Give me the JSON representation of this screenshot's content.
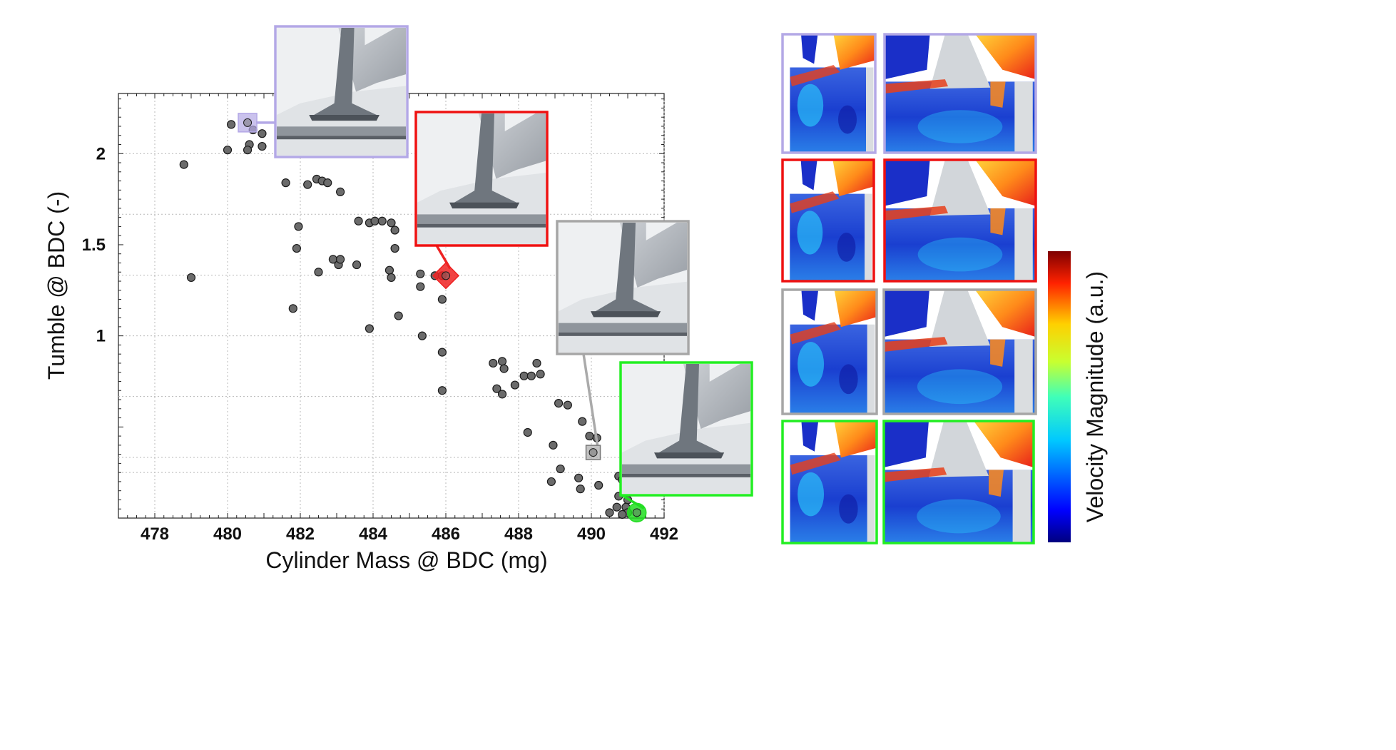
{
  "chart_data": {
    "type": "scatter",
    "title": "",
    "xlabel": "Cylinder Mass @ BDC (mg)",
    "ylabel": "Tumble @ BDC (-)",
    "xlim": [
      477,
      492
    ],
    "ylim": [
      0.0,
      2.33
    ],
    "xticks": [
      478,
      480,
      482,
      484,
      486,
      488,
      490,
      492
    ],
    "yticks": [
      1,
      1.5,
      2
    ],
    "xtick_labels": [
      "478",
      "480",
      "482",
      "484",
      "486",
      "488",
      "490",
      "492"
    ],
    "ytick_labels": [
      "1",
      "1.5",
      "2"
    ],
    "grid": true,
    "points": [
      {
        "x": 478.8,
        "y": 1.94
      },
      {
        "x": 479.0,
        "y": 1.32
      },
      {
        "x": 480.1,
        "y": 2.16
      },
      {
        "x": 480.0,
        "y": 2.02
      },
      {
        "x": 480.6,
        "y": 2.05
      },
      {
        "x": 480.55,
        "y": 2.02
      },
      {
        "x": 480.7,
        "y": 2.13
      },
      {
        "x": 480.95,
        "y": 2.11
      },
      {
        "x": 480.95,
        "y": 2.04
      },
      {
        "x": 481.6,
        "y": 1.84
      },
      {
        "x": 482.45,
        "y": 1.86
      },
      {
        "x": 482.6,
        "y": 1.85
      },
      {
        "x": 482.75,
        "y": 1.84
      },
      {
        "x": 482.2,
        "y": 1.83
      },
      {
        "x": 483.1,
        "y": 1.79
      },
      {
        "x": 481.95,
        "y": 1.6
      },
      {
        "x": 481.9,
        "y": 1.48
      },
      {
        "x": 481.8,
        "y": 1.15
      },
      {
        "x": 482.5,
        "y": 1.35
      },
      {
        "x": 482.9,
        "y": 1.42
      },
      {
        "x": 483.05,
        "y": 1.39
      },
      {
        "x": 483.1,
        "y": 1.42
      },
      {
        "x": 483.55,
        "y": 1.39
      },
      {
        "x": 483.6,
        "y": 1.63
      },
      {
        "x": 483.9,
        "y": 1.62
      },
      {
        "x": 484.05,
        "y": 1.63
      },
      {
        "x": 484.25,
        "y": 1.63
      },
      {
        "x": 484.5,
        "y": 1.62
      },
      {
        "x": 484.6,
        "y": 1.58
      },
      {
        "x": 484.6,
        "y": 1.48
      },
      {
        "x": 484.45,
        "y": 1.36
      },
      {
        "x": 484.5,
        "y": 1.32
      },
      {
        "x": 484.7,
        "y": 1.11
      },
      {
        "x": 483.9,
        "y": 1.04
      },
      {
        "x": 485.35,
        "y": 1.0
      },
      {
        "x": 485.3,
        "y": 1.34
      },
      {
        "x": 485.3,
        "y": 1.27
      },
      {
        "x": 485.7,
        "y": 1.33
      },
      {
        "x": 485.9,
        "y": 1.33
      },
      {
        "x": 485.9,
        "y": 1.2
      },
      {
        "x": 485.9,
        "y": 0.91
      },
      {
        "x": 485.9,
        "y": 0.7
      },
      {
        "x": 487.3,
        "y": 0.85
      },
      {
        "x": 487.55,
        "y": 0.86
      },
      {
        "x": 487.6,
        "y": 0.82
      },
      {
        "x": 487.4,
        "y": 0.71
      },
      {
        "x": 487.55,
        "y": 0.68
      },
      {
        "x": 487.9,
        "y": 0.73
      },
      {
        "x": 488.15,
        "y": 0.78
      },
      {
        "x": 488.35,
        "y": 0.78
      },
      {
        "x": 488.5,
        "y": 0.85
      },
      {
        "x": 488.6,
        "y": 0.79
      },
      {
        "x": 488.25,
        "y": 0.47
      },
      {
        "x": 489.1,
        "y": 0.63
      },
      {
        "x": 489.35,
        "y": 0.62
      },
      {
        "x": 488.95,
        "y": 0.4
      },
      {
        "x": 489.15,
        "y": 0.27
      },
      {
        "x": 488.9,
        "y": 0.2
      },
      {
        "x": 489.75,
        "y": 0.53
      },
      {
        "x": 489.95,
        "y": 0.45
      },
      {
        "x": 489.65,
        "y": 0.22
      },
      {
        "x": 489.7,
        "y": 0.16
      },
      {
        "x": 490.2,
        "y": 0.18
      },
      {
        "x": 490.15,
        "y": 0.44
      },
      {
        "x": 490.75,
        "y": 0.23
      },
      {
        "x": 490.85,
        "y": 0.21
      },
      {
        "x": 490.95,
        "y": 0.16
      },
      {
        "x": 490.75,
        "y": 0.12
      },
      {
        "x": 491.0,
        "y": 0.1
      },
      {
        "x": 490.7,
        "y": 0.06
      },
      {
        "x": 490.95,
        "y": 0.06
      },
      {
        "x": 491.0,
        "y": 0.03
      },
      {
        "x": 490.5,
        "y": 0.03
      },
      {
        "x": 490.85,
        "y": 0.02
      }
    ],
    "highlighted_points": [
      {
        "name": "lavender",
        "x": 480.55,
        "y": 2.17,
        "marker": "square",
        "color": "#b3a8e6"
      },
      {
        "name": "red",
        "x": 486.0,
        "y": 1.33,
        "marker": "diamond",
        "color": "#ee2222"
      },
      {
        "name": "gray",
        "x": 490.05,
        "y": 0.36,
        "marker": "square",
        "color": "#aaaaaa"
      },
      {
        "name": "green",
        "x": 491.25,
        "y": 0.03,
        "marker": "circle",
        "color": "#22dd22"
      }
    ],
    "colorbar": {
      "label": "Velocity Magnitude (a.u.)",
      "colormap": "jet"
    }
  },
  "colors": {
    "lavender": "#b3a8e6",
    "red": "#ee1111",
    "gray": "#a6a6a6",
    "green": "#22ee22",
    "marker_fill": "#6b6b6b",
    "marker_edge": "#1a1a1a"
  },
  "insets": [
    {
      "name": "lavender",
      "label": "lavender-valve-inset"
    },
    {
      "name": "red",
      "label": "red-valve-inset"
    },
    {
      "name": "gray",
      "label": "gray-valve-inset"
    },
    {
      "name": "green",
      "label": "green-valve-inset"
    }
  ]
}
